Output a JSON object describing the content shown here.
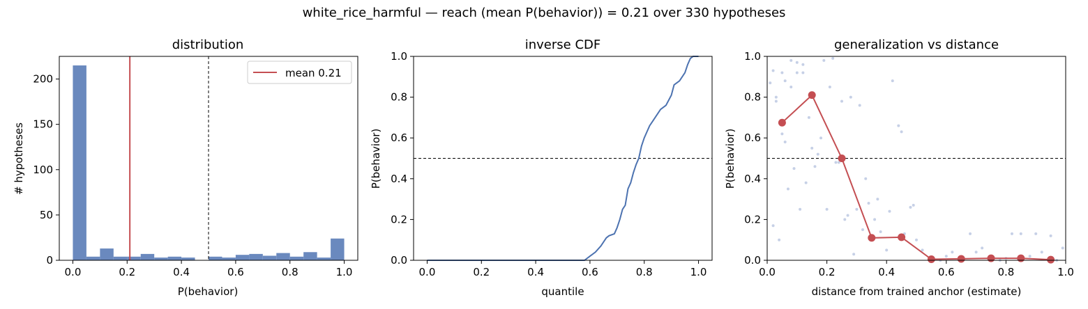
{
  "figure": {
    "suptitle": "white_rice_harmful  —  reach (mean P(behavior)) = 0.21  over 330 hypotheses"
  },
  "chart_data": [
    {
      "type": "bar",
      "title": "distribution",
      "xlabel": "P(behavior)",
      "ylabel": "# hypotheses",
      "xlim": [
        -0.05,
        1.05
      ],
      "ylim": [
        0,
        225
      ],
      "xticks": [
        "0.0",
        "0.2",
        "0.4",
        "0.6",
        "0.8",
        "1.0"
      ],
      "yticks": [
        "0",
        "50",
        "100",
        "150",
        "200"
      ],
      "bin_width": 0.05,
      "bin_starts": [
        0.0,
        0.05,
        0.1,
        0.15,
        0.2,
        0.25,
        0.3,
        0.35,
        0.4,
        0.45,
        0.5,
        0.55,
        0.6,
        0.65,
        0.7,
        0.75,
        0.8,
        0.85,
        0.9,
        0.95
      ],
      "values": [
        215,
        4,
        13,
        4,
        4,
        7,
        3,
        4,
        3,
        0,
        4,
        3,
        6,
        7,
        5,
        8,
        4,
        9,
        3,
        24
      ],
      "mean": 0.21,
      "threshold": 0.5,
      "legend": {
        "label": "mean 0.21",
        "placement": "upper right"
      },
      "colors": {
        "bars": "#6a89be",
        "mean_line": "#c44e52",
        "threshold": "#000000"
      }
    },
    {
      "type": "line",
      "title": "inverse CDF",
      "xlabel": "quantile",
      "ylabel": "P(behavior)",
      "xlim": [
        -0.05,
        1.05
      ],
      "ylim": [
        0,
        1
      ],
      "xticks": [
        "0.0",
        "0.2",
        "0.4",
        "0.6",
        "0.8",
        "1.0"
      ],
      "yticks": [
        "0.0",
        "0.2",
        "0.4",
        "0.6",
        "0.8",
        "1.0"
      ],
      "threshold": 0.5,
      "x": [
        0.0,
        0.58,
        0.6,
        0.62,
        0.64,
        0.66,
        0.67,
        0.69,
        0.7,
        0.71,
        0.72,
        0.73,
        0.74,
        0.75,
        0.76,
        0.77,
        0.78,
        0.79,
        0.8,
        0.81,
        0.82,
        0.83,
        0.84,
        0.86,
        0.88,
        0.9,
        0.91,
        0.92,
        0.93,
        0.95,
        0.96,
        0.97,
        0.98,
        1.0
      ],
      "y": [
        0.0,
        0.0,
        0.02,
        0.04,
        0.07,
        0.11,
        0.12,
        0.13,
        0.16,
        0.2,
        0.25,
        0.27,
        0.35,
        0.38,
        0.43,
        0.47,
        0.5,
        0.56,
        0.6,
        0.63,
        0.66,
        0.68,
        0.7,
        0.74,
        0.76,
        0.81,
        0.86,
        0.87,
        0.88,
        0.92,
        0.96,
        0.99,
        1.0,
        1.0
      ],
      "colors": {
        "line": "#4c72b0"
      }
    },
    {
      "type": "scatter",
      "title": "generalization vs distance",
      "xlabel": "distance from trained anchor (estimate)",
      "ylabel": "P(behavior)",
      "xlim": [
        0,
        1
      ],
      "ylim": [
        0,
        1
      ],
      "xticks": [
        "0.0",
        "0.2",
        "0.4",
        "0.6",
        "0.8",
        "1.0"
      ],
      "yticks": [
        "0.0",
        "0.2",
        "0.4",
        "0.6",
        "0.8",
        "1.0"
      ],
      "threshold": 0.5,
      "scatter": {
        "x": [
          0.01,
          0.02,
          0.03,
          0.05,
          0.06,
          0.08,
          0.1,
          0.12,
          0.02,
          0.04,
          0.07,
          0.09,
          0.11,
          0.13,
          0.15,
          0.17,
          0.19,
          0.21,
          0.23,
          0.25,
          0.27,
          0.29,
          0.31,
          0.14,
          0.16,
          0.18,
          0.2,
          0.22,
          0.24,
          0.26,
          0.28,
          0.3,
          0.32,
          0.34,
          0.36,
          0.38,
          0.4,
          0.42,
          0.44,
          0.46,
          0.48,
          0.5,
          0.33,
          0.37,
          0.41,
          0.45,
          0.49,
          0.52,
          0.55,
          0.58,
          0.6,
          0.62,
          0.65,
          0.68,
          0.7,
          0.72,
          0.75,
          0.78,
          0.8,
          0.82,
          0.85,
          0.88,
          0.9,
          0.92,
          0.95,
          0.97,
          0.99,
          0.06,
          0.08,
          0.1,
          0.12,
          0.03,
          0.05
        ],
        "y": [
          0.87,
          0.93,
          0.8,
          0.62,
          0.58,
          0.98,
          0.97,
          0.96,
          0.17,
          0.1,
          0.35,
          0.45,
          0.25,
          0.38,
          0.55,
          0.52,
          0.98,
          0.85,
          0.48,
          0.78,
          0.22,
          0.03,
          0.76,
          0.7,
          0.46,
          0.6,
          0.25,
          0.99,
          0.48,
          0.2,
          0.8,
          0.25,
          0.15,
          0.28,
          0.2,
          0.14,
          0.05,
          0.88,
          0.66,
          0.13,
          0.26,
          0.1,
          0.4,
          0.3,
          0.24,
          0.63,
          0.27,
          0.05,
          0.0,
          0.0,
          0.02,
          0.04,
          0.0,
          0.13,
          0.04,
          0.06,
          0.02,
          0.0,
          0.01,
          0.13,
          0.13,
          0.02,
          0.13,
          0.04,
          0.12,
          0.0,
          0.06,
          0.88,
          0.85,
          0.92,
          0.92,
          0.78,
          0.92
        ],
        "color": "#b8c4e0"
      },
      "binned": {
        "x": [
          0.05,
          0.15,
          0.25,
          0.35,
          0.45,
          0.55,
          0.65,
          0.75,
          0.85,
          0.95
        ],
        "y": [
          0.675,
          0.81,
          0.5,
          0.11,
          0.113,
          0.005,
          0.007,
          0.01,
          0.01,
          0.003
        ],
        "color": "#c44e52"
      }
    }
  ]
}
